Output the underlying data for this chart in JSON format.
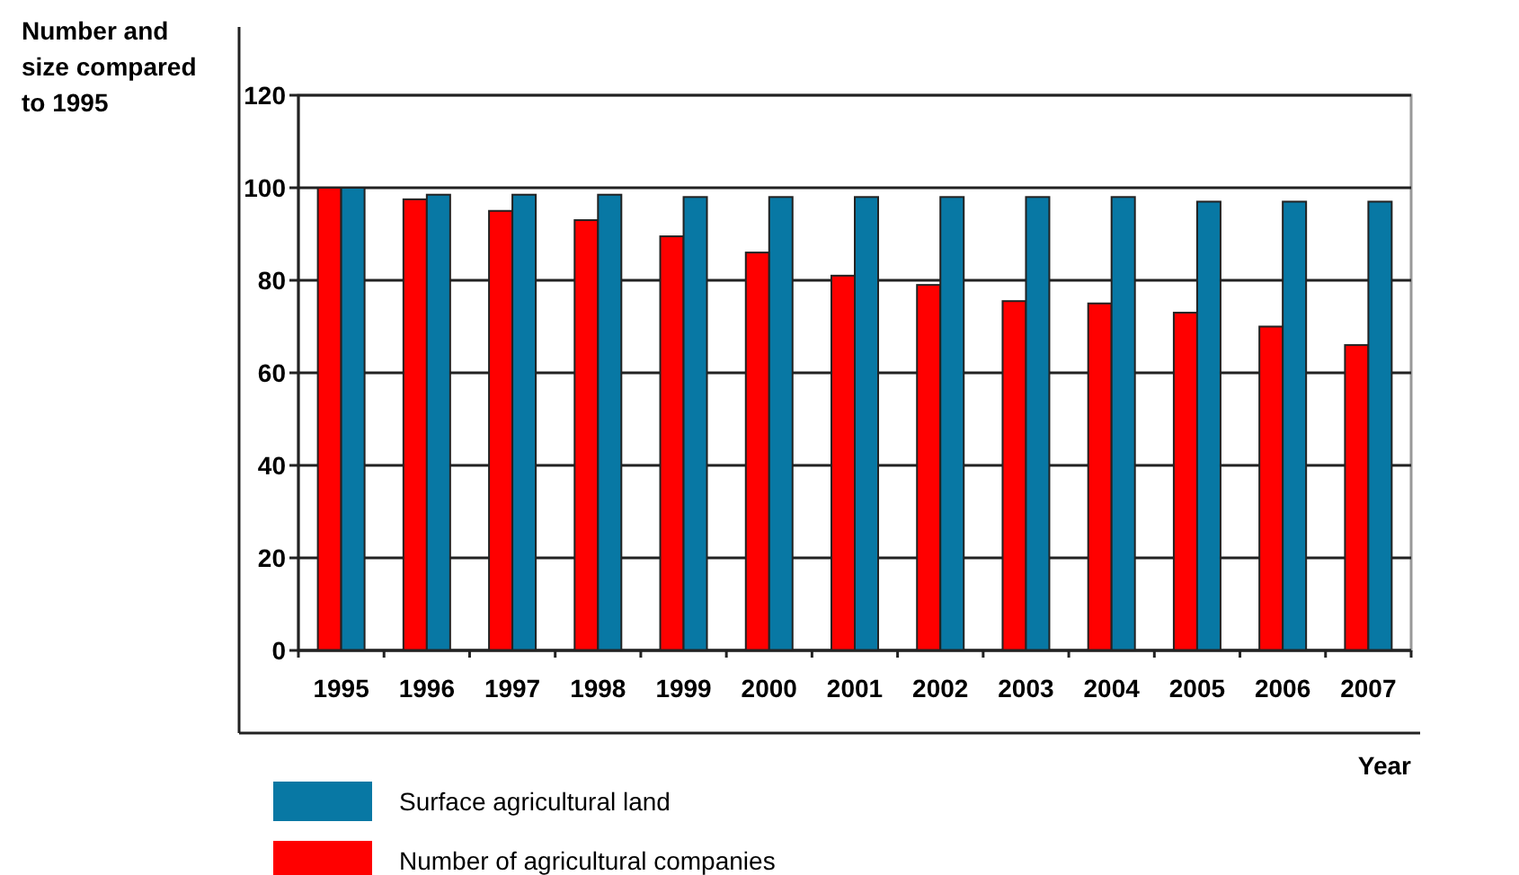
{
  "chart_data": {
    "type": "bar",
    "ylabel": "Number and size compared to 1995",
    "xlabel": "Year",
    "categories": [
      "1995",
      "1996",
      "1997",
      "1998",
      "1999",
      "2000",
      "2001",
      "2002",
      "2003",
      "2004",
      "2005",
      "2006",
      "2007"
    ],
    "series": [
      {
        "name": "Number of agricultural companies",
        "color": "#ff0000",
        "values": [
          100,
          97.5,
          95,
          93,
          89.5,
          86,
          81,
          79,
          75.5,
          75,
          73,
          70,
          66
        ]
      },
      {
        "name": "Surface agricultural land",
        "color": "#0878a4",
        "values": [
          100,
          98.5,
          98.5,
          98.5,
          98,
          98,
          98,
          98,
          98,
          98,
          97,
          97,
          97
        ]
      }
    ],
    "ylim": [
      0,
      120
    ],
    "yticks": [
      0,
      20,
      40,
      60,
      80,
      100,
      120
    ],
    "grid": "y",
    "legend": "bottom"
  }
}
